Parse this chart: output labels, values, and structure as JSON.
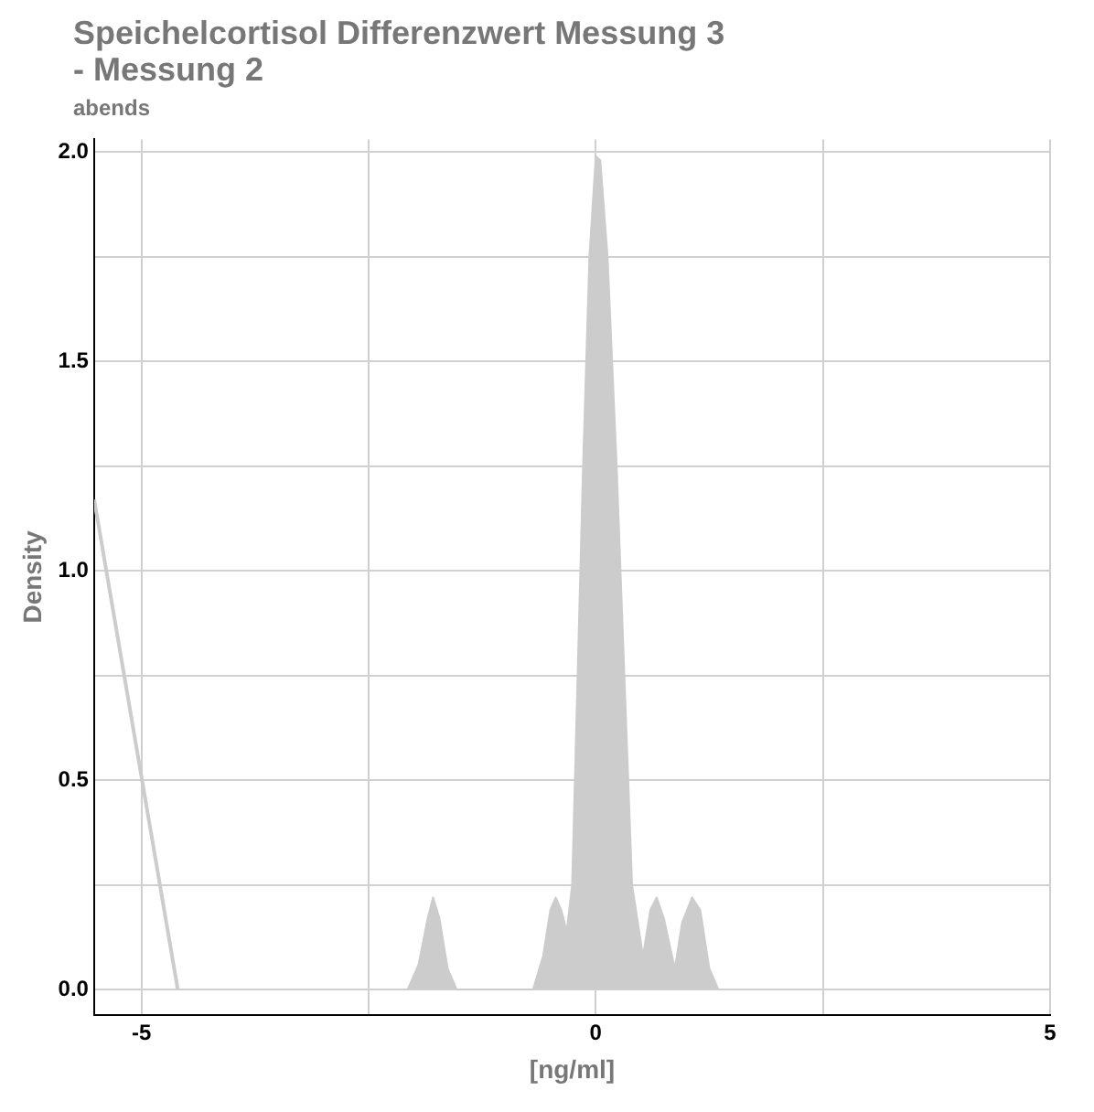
{
  "chart_data": {
    "type": "area",
    "title": "Speichelcortisol Differenzwert Messung 3 - Messung 2",
    "subtitle": "abends",
    "xlabel": "[ng/ml]",
    "ylabel": "Density",
    "series": [
      {
        "type": "area",
        "color": "#cccccc",
        "x": [
          -2.07,
          -1.95,
          -1.85,
          -1.79,
          -1.72,
          -1.63,
          -1.53,
          -0.69,
          -0.58,
          -0.5,
          -0.44,
          -0.38,
          -0.32,
          -0.26,
          -0.14,
          -0.07,
          0.0,
          0.05,
          0.13,
          0.23,
          0.4,
          0.52,
          0.6,
          0.67,
          0.75,
          0.87,
          0.95,
          1.06,
          1.15,
          1.25,
          1.35
        ],
        "values": [
          0,
          0.06,
          0.17,
          0.22,
          0.17,
          0.05,
          0,
          0,
          0.08,
          0.19,
          0.22,
          0.19,
          0.14,
          0.25,
          1.25,
          1.75,
          1.99,
          1.98,
          1.75,
          1.25,
          0.25,
          0.08,
          0.19,
          0.22,
          0.17,
          0.05,
          0.16,
          0.22,
          0.19,
          0.05,
          0
        ]
      },
      {
        "type": "line",
        "color": "#cccccc",
        "x": [
          -5.52,
          -4.6
        ],
        "values": [
          1.17,
          0
        ]
      }
    ],
    "xlim": [
      -5.52,
      5
    ],
    "ylim": [
      -0.06,
      2.03
    ],
    "xticks": [
      -5,
      {
        "value": -2.5,
        "label": null
      },
      0,
      {
        "value": 2.5,
        "label": null
      },
      5
    ],
    "yticks": [
      {
        "value": 0,
        "label": "0.0"
      },
      {
        "value": 0.25,
        "label": null
      },
      {
        "value": 0.5,
        "label": "0.5"
      },
      {
        "value": 0.75,
        "label": null
      },
      {
        "value": 1,
        "label": "1.0"
      },
      {
        "value": 1.25,
        "label": null
      },
      {
        "value": 1.5,
        "label": "1.5"
      },
      {
        "value": 1.75,
        "label": null
      },
      {
        "value": 2,
        "label": "2.0"
      }
    ],
    "grid": true
  }
}
